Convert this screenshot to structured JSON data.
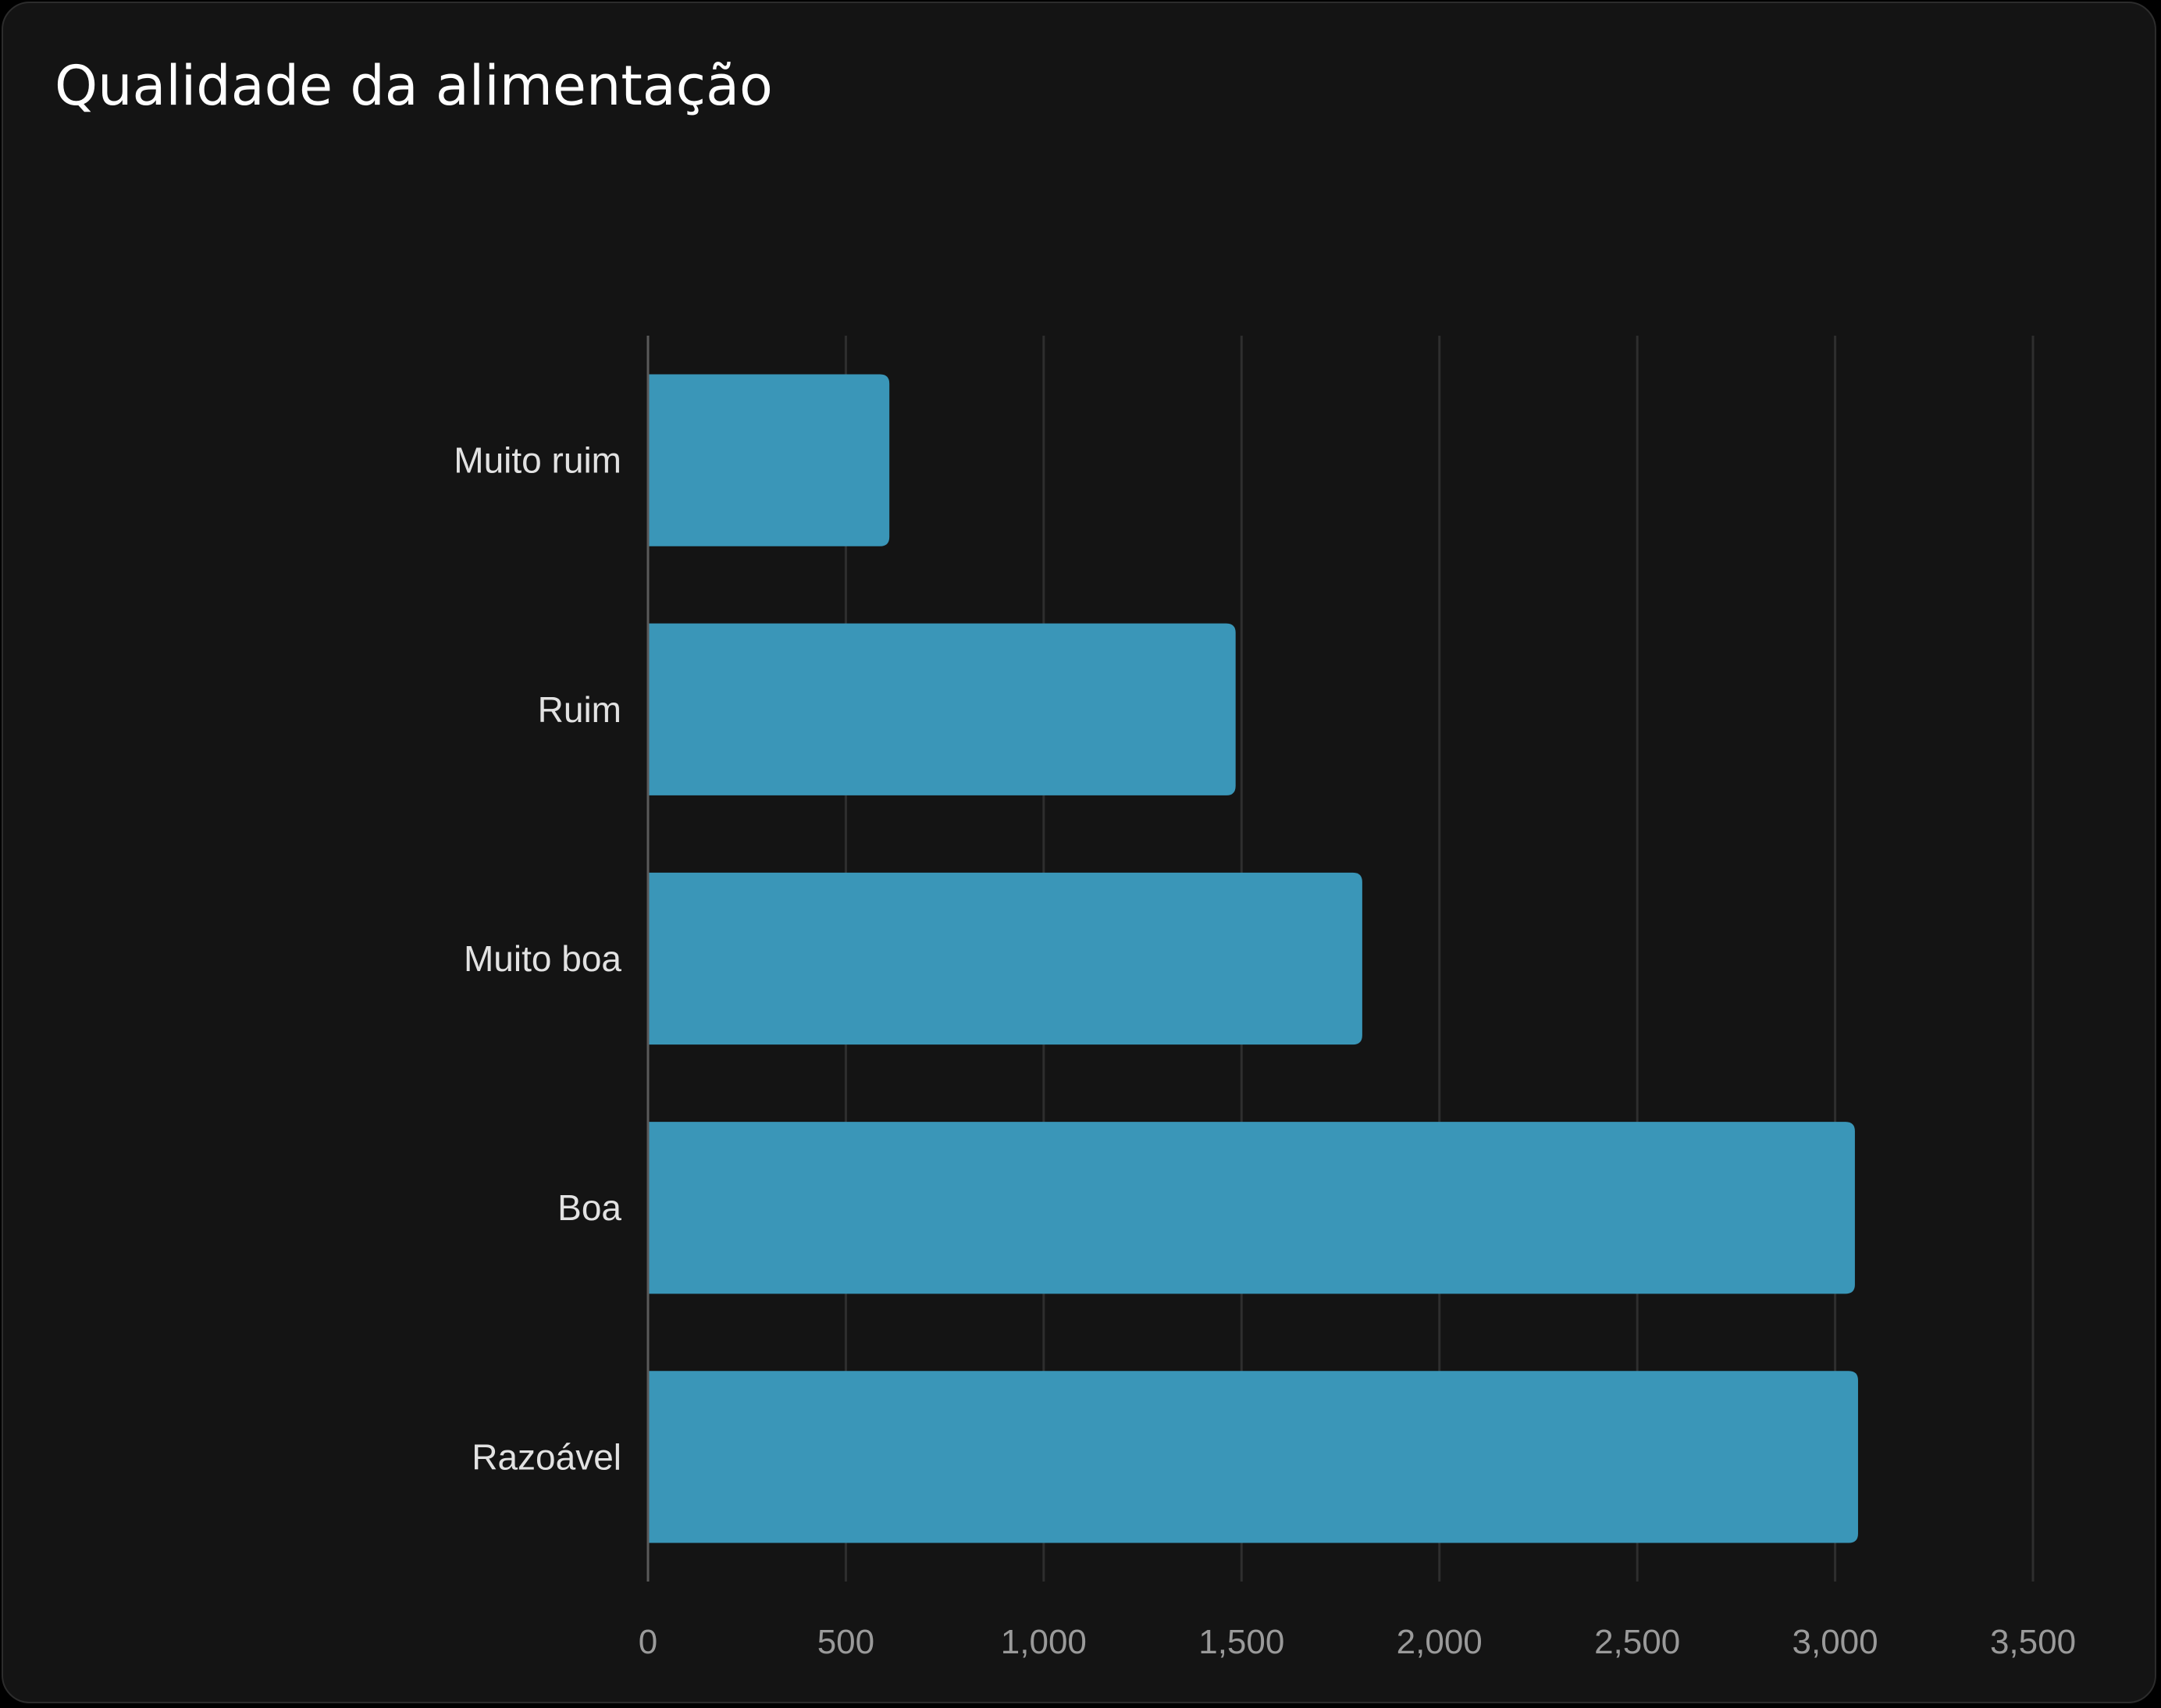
{
  "card": {
    "title": "Qualidade da alimentação"
  },
  "colors": {
    "background": "#141414",
    "bar": "#3a96b8",
    "grid": "#2e2e2e",
    "axis": "#5a5a5a"
  },
  "chart_data": {
    "type": "bar",
    "orientation": "horizontal",
    "title": "Qualidade da alimentação",
    "xlabel": "",
    "ylabel": "",
    "categories": [
      "Muito ruim",
      "Ruim",
      "Muito boa",
      "Boa",
      "Razoável"
    ],
    "values": [
      610,
      1485,
      1805,
      3050,
      3058
    ],
    "xlim": [
      0,
      3500
    ],
    "xticks": [
      0,
      500,
      1000,
      1500,
      2000,
      2500,
      3000,
      3500
    ],
    "xtick_labels": [
      "0",
      "500",
      "1,000",
      "1,500",
      "2,000",
      "2,500",
      "3,000",
      "3,500"
    ],
    "grid": true,
    "legend": "none"
  }
}
